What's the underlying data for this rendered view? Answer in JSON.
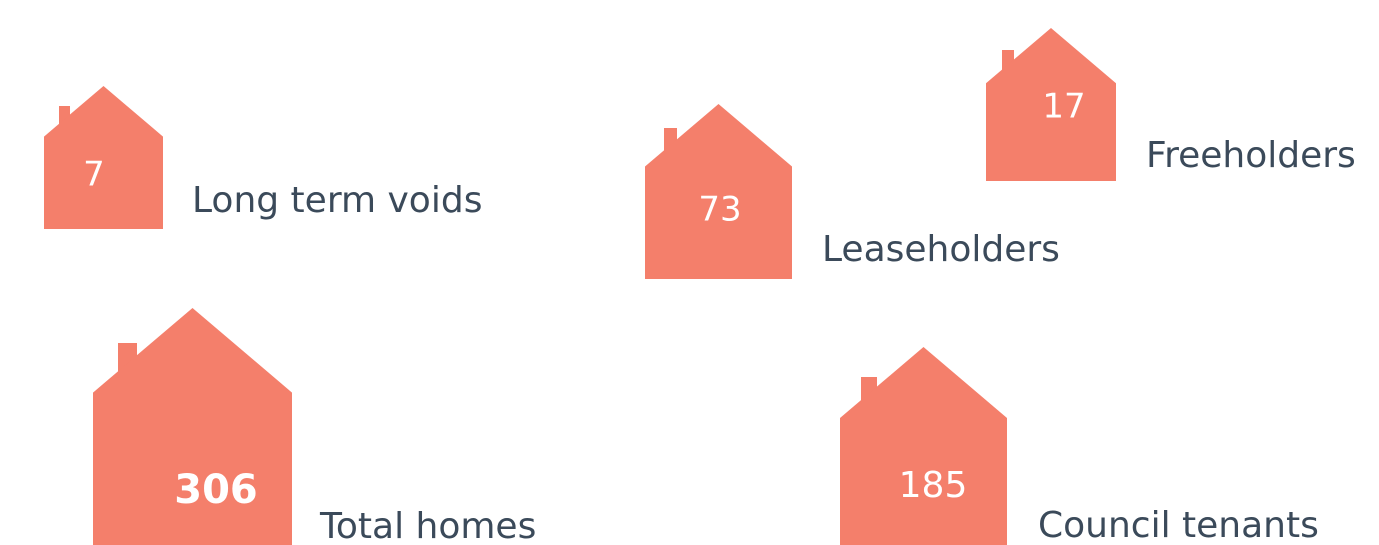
{
  "items": [
    {
      "value": 7,
      "label": "Long term voids"
    },
    {
      "value": 73,
      "label": "Leaseholders"
    },
    {
      "value": 17,
      "label": "Freeholders"
    },
    {
      "value": 306,
      "label": "Total homes"
    },
    {
      "value": 185,
      "label": "Council tenants"
    }
  ]
}
